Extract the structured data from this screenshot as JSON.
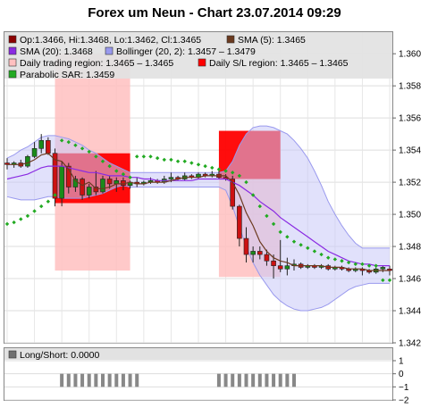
{
  "chart_data": [
    {
      "type": "candlestick",
      "title": "Forex um Neun - Chart 23.07.2014 09:29",
      "ylim": [
        1.342,
        1.3614
      ],
      "y_ticks": [
        "1.342",
        "1.344",
        "1.346",
        "1.348",
        "1.350",
        "1.352",
        "1.354",
        "1.356",
        "1.358",
        "1.360"
      ],
      "grid": true,
      "legend": {
        "placement": "top",
        "entries": [
          {
            "label": "Op:1.3466, Hi:1.3468, Lo:1.3462, Cl:1.3465",
            "color": "#8b0000"
          },
          {
            "label": "SMA (5): 1.3465",
            "color": "#6b3a1f"
          },
          {
            "label": "SMA (20): 1.3468",
            "color": "#8a2be2"
          },
          {
            "label": "Bollinger (20, 2): 1.3457 – 1.3479",
            "color": "#9999ee"
          },
          {
            "label": "Daily trading region: 1.3465 – 1.3465",
            "color": "#ffc0c0"
          },
          {
            "label": "Daily S/L region: 1.3465 – 1.3465",
            "color": "#ff0000"
          },
          {
            "label": "Parabolic SAR: 1.3459",
            "color": "#22aa22"
          }
        ]
      },
      "colors": {
        "up_candle": "#1a8a1a",
        "down_candle": "#cc1111",
        "sma5": "#6b3a1f",
        "sma20": "#8a2be2",
        "bollinger_fill": "#c8c8f8",
        "bollinger_line": "#9999ee",
        "trading_region": "#ffc0c0",
        "sl_region": "#ff0000",
        "sar": "#22aa22"
      },
      "candles": [
        {
          "o": 1.3532,
          "h": 1.3535,
          "l": 1.3528,
          "c": 1.3531
        },
        {
          "o": 1.3531,
          "h": 1.3533,
          "l": 1.3529,
          "c": 1.3532
        },
        {
          "o": 1.3532,
          "h": 1.3534,
          "l": 1.3529,
          "c": 1.353
        },
        {
          "o": 1.353,
          "h": 1.3537,
          "l": 1.3529,
          "c": 1.3536
        },
        {
          "o": 1.3536,
          "h": 1.3545,
          "l": 1.3535,
          "c": 1.3541
        },
        {
          "o": 1.3541,
          "h": 1.355,
          "l": 1.3538,
          "c": 1.3546
        },
        {
          "o": 1.3546,
          "h": 1.3548,
          "l": 1.3537,
          "c": 1.3538
        },
        {
          "o": 1.3538,
          "h": 1.3541,
          "l": 1.3505,
          "c": 1.351
        },
        {
          "o": 1.351,
          "h": 1.3533,
          "l": 1.3505,
          "c": 1.353
        },
        {
          "o": 1.353,
          "h": 1.3532,
          "l": 1.3513,
          "c": 1.3517
        },
        {
          "o": 1.3517,
          "h": 1.3524,
          "l": 1.3514,
          "c": 1.3522
        },
        {
          "o": 1.3522,
          "h": 1.3523,
          "l": 1.3509,
          "c": 1.3512
        },
        {
          "o": 1.3512,
          "h": 1.3519,
          "l": 1.351,
          "c": 1.3517
        },
        {
          "o": 1.3517,
          "h": 1.3527,
          "l": 1.3512,
          "c": 1.3514
        },
        {
          "o": 1.3514,
          "h": 1.3524,
          "l": 1.3513,
          "c": 1.3522
        },
        {
          "o": 1.3522,
          "h": 1.3524,
          "l": 1.3516,
          "c": 1.3519
        },
        {
          "o": 1.3519,
          "h": 1.3523,
          "l": 1.3514,
          "c": 1.3521
        },
        {
          "o": 1.3521,
          "h": 1.3523,
          "l": 1.3515,
          "c": 1.3518
        },
        {
          "o": 1.3518,
          "h": 1.3521,
          "l": 1.3516,
          "c": 1.352
        },
        {
          "o": 1.352,
          "h": 1.3523,
          "l": 1.3517,
          "c": 1.3519
        },
        {
          "o": 1.3519,
          "h": 1.3521,
          "l": 1.3518,
          "c": 1.352
        },
        {
          "o": 1.352,
          "h": 1.3523,
          "l": 1.3519,
          "c": 1.3521
        },
        {
          "o": 1.3521,
          "h": 1.3522,
          "l": 1.3519,
          "c": 1.352
        },
        {
          "o": 1.352,
          "h": 1.3524,
          "l": 1.3519,
          "c": 1.3522
        },
        {
          "o": 1.3522,
          "h": 1.3526,
          "l": 1.352,
          "c": 1.3523
        },
        {
          "o": 1.3523,
          "h": 1.3524,
          "l": 1.3521,
          "c": 1.3522
        },
        {
          "o": 1.3522,
          "h": 1.3526,
          "l": 1.3521,
          "c": 1.3524
        },
        {
          "o": 1.3524,
          "h": 1.3525,
          "l": 1.3522,
          "c": 1.3523
        },
        {
          "o": 1.3523,
          "h": 1.3526,
          "l": 1.3522,
          "c": 1.3525
        },
        {
          "o": 1.3525,
          "h": 1.3526,
          "l": 1.3523,
          "c": 1.3524
        },
        {
          "o": 1.3524,
          "h": 1.3527,
          "l": 1.3523,
          "c": 1.3525
        },
        {
          "o": 1.3525,
          "h": 1.3527,
          "l": 1.3522,
          "c": 1.3523
        },
        {
          "o": 1.3523,
          "h": 1.3525,
          "l": 1.3521,
          "c": 1.3522
        },
        {
          "o": 1.3522,
          "h": 1.3524,
          "l": 1.3503,
          "c": 1.3505
        },
        {
          "o": 1.3505,
          "h": 1.3506,
          "l": 1.348,
          "c": 1.3485
        },
        {
          "o": 1.3485,
          "h": 1.3492,
          "l": 1.347,
          "c": 1.3475
        },
        {
          "o": 1.3475,
          "h": 1.348,
          "l": 1.347,
          "c": 1.3477
        },
        {
          "o": 1.3477,
          "h": 1.348,
          "l": 1.3472,
          "c": 1.3475
        },
        {
          "o": 1.3475,
          "h": 1.3478,
          "l": 1.3468,
          "c": 1.3471
        },
        {
          "o": 1.3471,
          "h": 1.3475,
          "l": 1.346,
          "c": 1.3468
        },
        {
          "o": 1.3468,
          "h": 1.3484,
          "l": 1.3464,
          "c": 1.3466
        },
        {
          "o": 1.3466,
          "h": 1.3473,
          "l": 1.3462,
          "c": 1.3468
        },
        {
          "o": 1.3468,
          "h": 1.3472,
          "l": 1.3465,
          "c": 1.3469
        },
        {
          "o": 1.3469,
          "h": 1.347,
          "l": 1.3466,
          "c": 1.3467
        },
        {
          "o": 1.3467,
          "h": 1.3469,
          "l": 1.3466,
          "c": 1.3468
        },
        {
          "o": 1.3468,
          "h": 1.3469,
          "l": 1.3466,
          "c": 1.3467
        },
        {
          "o": 1.3467,
          "h": 1.3469,
          "l": 1.3466,
          "c": 1.3468
        },
        {
          "o": 1.3468,
          "h": 1.3469,
          "l": 1.3465,
          "c": 1.3466
        },
        {
          "o": 1.3466,
          "h": 1.3468,
          "l": 1.3465,
          "c": 1.3467
        },
        {
          "o": 1.3467,
          "h": 1.3468,
          "l": 1.3465,
          "c": 1.3466
        },
        {
          "o": 1.3466,
          "h": 1.3467,
          "l": 1.3464,
          "c": 1.3465
        },
        {
          "o": 1.3465,
          "h": 1.3467,
          "l": 1.3464,
          "c": 1.3466
        },
        {
          "o": 1.3466,
          "h": 1.3467,
          "l": 1.3462,
          "c": 1.3465
        },
        {
          "o": 1.3465,
          "h": 1.3466,
          "l": 1.3463,
          "c": 1.3464
        },
        {
          "o": 1.3464,
          "h": 1.3467,
          "l": 1.3463,
          "c": 1.3466
        },
        {
          "o": 1.3466,
          "h": 1.3468,
          "l": 1.3464,
          "c": 1.3467
        },
        {
          "o": 1.3466,
          "h": 1.3468,
          "l": 1.3462,
          "c": 1.3465
        }
      ],
      "sma5": [
        1.3531,
        1.3531,
        1.3531,
        1.3532,
        1.3534,
        1.3537,
        1.3538,
        1.3534,
        1.3533,
        1.3528,
        1.3521,
        1.3518,
        1.352,
        1.3516,
        1.3516,
        1.3517,
        1.3519,
        1.3519,
        1.352,
        1.3519,
        1.3519,
        1.352,
        1.352,
        1.352,
        1.3521,
        1.3522,
        1.3523,
        1.3523,
        1.3523,
        1.3524,
        1.3524,
        1.3524,
        1.3524,
        1.352,
        1.3512,
        1.3501,
        1.3493,
        1.3483,
        1.3477,
        1.3473,
        1.3471,
        1.347,
        1.3468,
        1.3468,
        1.3468,
        1.3468,
        1.3468,
        1.3467,
        1.3467,
        1.3467,
        1.3466,
        1.3466,
        1.3466,
        1.3465,
        1.3465,
        1.3465,
        1.3465
      ],
      "sma20": [
        1.3522,
        1.3523,
        1.3524,
        1.3525,
        1.3527,
        1.3529,
        1.353,
        1.353,
        1.353,
        1.3529,
        1.3528,
        1.3527,
        1.3526,
        1.3526,
        1.3525,
        1.3524,
        1.3524,
        1.3524,
        1.3523,
        1.3523,
        1.3522,
        1.3522,
        1.3521,
        1.3521,
        1.3521,
        1.3521,
        1.3521,
        1.3521,
        1.3522,
        1.3522,
        1.3522,
        1.3522,
        1.3522,
        1.352,
        1.3518,
        1.3515,
        1.3512,
        1.3508,
        1.3505,
        1.3502,
        1.3498,
        1.3495,
        1.3492,
        1.3489,
        1.3486,
        1.3483,
        1.348,
        1.3477,
        1.3475,
        1.3473,
        1.3471,
        1.347,
        1.3469,
        1.3469,
        1.3468,
        1.3468,
        1.3468
      ],
      "bb_upper": [
        1.3535,
        1.3537,
        1.354,
        1.3542,
        1.3545,
        1.3548,
        1.3549,
        1.3549,
        1.3548,
        1.3547,
        1.3545,
        1.3543,
        1.354,
        1.3538,
        1.3535,
        1.3532,
        1.353,
        1.3528,
        1.3526,
        1.3526,
        1.3526,
        1.3526,
        1.3526,
        1.3526,
        1.3526,
        1.3526,
        1.3526,
        1.3526,
        1.3526,
        1.3526,
        1.3526,
        1.3526,
        1.3527,
        1.3533,
        1.3543,
        1.355,
        1.3554,
        1.3555,
        1.3555,
        1.3554,
        1.3552,
        1.355,
        1.3546,
        1.3541,
        1.3535,
        1.3527,
        1.3518,
        1.3508,
        1.35,
        1.3493,
        1.3487,
        1.3482,
        1.3479,
        1.3479,
        1.3479,
        1.3479,
        1.3479
      ],
      "bb_lower": [
        1.3511,
        1.351,
        1.3509,
        1.3509,
        1.3509,
        1.351,
        1.3511,
        1.3511,
        1.351,
        1.351,
        1.351,
        1.351,
        1.3511,
        1.3512,
        1.3513,
        1.3515,
        1.3517,
        1.3518,
        1.3517,
        1.3517,
        1.3517,
        1.3517,
        1.3517,
        1.3517,
        1.3517,
        1.3517,
        1.3517,
        1.3517,
        1.3517,
        1.3517,
        1.3517,
        1.3517,
        1.3515,
        1.3505,
        1.3492,
        1.348,
        1.347,
        1.3462,
        1.3456,
        1.345,
        1.3446,
        1.3443,
        1.3441,
        1.344,
        1.344,
        1.3441,
        1.3442,
        1.3444,
        1.3447,
        1.345,
        1.3453,
        1.3455,
        1.3456,
        1.3457,
        1.3457,
        1.3457,
        1.3457
      ],
      "sar": [
        1.3494,
        1.3495,
        1.3497,
        1.3499,
        1.3502,
        1.3505,
        1.3508,
        1.3512,
        1.3546,
        1.3545,
        1.3543,
        1.3541,
        1.3539,
        1.3536,
        1.3533,
        1.353,
        1.3527,
        1.3525,
        1.3523,
        1.3536,
        1.3536,
        1.3536,
        1.3535,
        1.3534,
        1.3534,
        1.3533,
        1.3533,
        1.3532,
        1.3531,
        1.353,
        1.3529,
        1.3528,
        1.3527,
        1.3526,
        1.3524,
        1.352,
        1.3512,
        1.3505,
        1.3499,
        1.3494,
        1.3489,
        1.3486,
        1.3483,
        1.3481,
        1.3479,
        1.3477,
        1.3475,
        1.3473,
        1.3472,
        1.3471,
        1.347,
        1.3469,
        1.3469,
        1.3468,
        1.3468,
        1.3459,
        1.3459
      ],
      "trading_regions": [
        {
          "from": 7,
          "to": 18,
          "low": 1.3465,
          "high": 1.36
        },
        {
          "from": 31,
          "to": 40,
          "low": 1.3461,
          "high": 1.3522
        }
      ],
      "sl_regions": [
        {
          "from": 7,
          "to": 18,
          "low": 1.3507,
          "high": 1.3538
        },
        {
          "from": 31,
          "to": 40,
          "low": 1.3522,
          "high": 1.3552
        }
      ]
    },
    {
      "type": "bar",
      "title": "Long/Short: 0.0000",
      "ylim": [
        -2,
        1
      ],
      "y_ticks": [
        "1",
        "0",
        "−1",
        "−2"
      ],
      "legend_color": "#707070",
      "bar_color": "#888888",
      "bars": [
        {
          "from": 8,
          "to": 19,
          "value": -1
        },
        {
          "from": 31,
          "to": 42,
          "value": -1
        }
      ],
      "grid": true
    }
  ]
}
